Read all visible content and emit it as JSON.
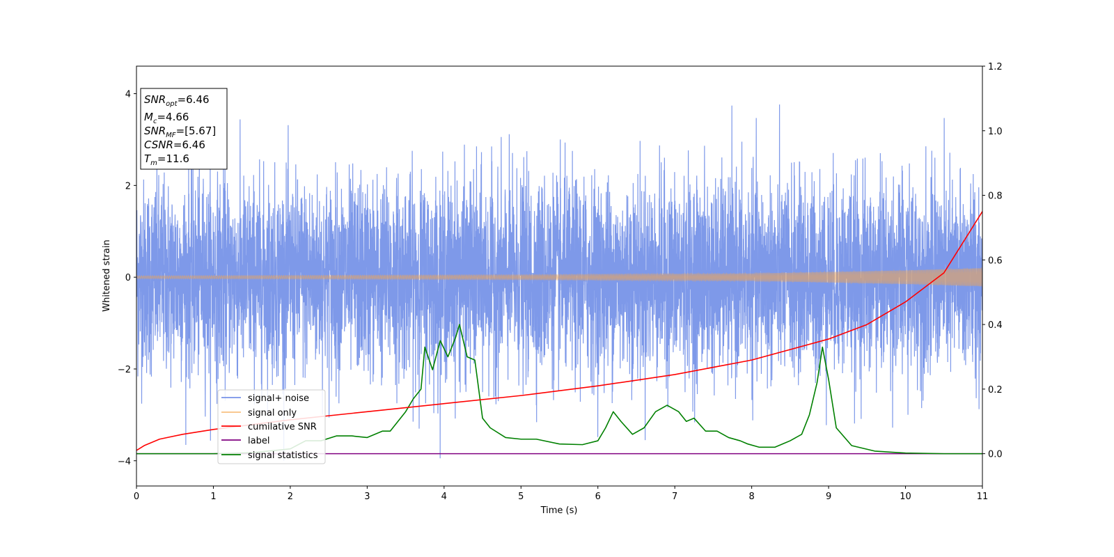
{
  "chart_data": {
    "type": "line",
    "xlabel": "Time (s)",
    "ylabel": "Whitened strain",
    "xlim": [
      0,
      11
    ],
    "ylim_left": [
      -4.55,
      4.6
    ],
    "ylim_right": [
      -0.1,
      1.2
    ],
    "xticks": [
      "0",
      "1",
      "2",
      "3",
      "4",
      "5",
      "6",
      "7",
      "8",
      "9",
      "10",
      "11"
    ],
    "yticks_left": [
      "−4",
      "−2",
      "0",
      "2",
      "4"
    ],
    "yticks_right": [
      "0.0",
      "0.2",
      "0.4",
      "0.6",
      "0.8",
      "1.0",
      "1.2"
    ],
    "grid": false,
    "legend_location": "lower-left",
    "stats_box": [
      {
        "sym": "SNR",
        "sub": "opt",
        "value": "=6.46"
      },
      {
        "sym": "M",
        "sub": "c",
        "value": "=4.66"
      },
      {
        "sym": "SNR",
        "sub": "MF",
        "value": "=[5.67]"
      },
      {
        "sym": "CSNR",
        "sub": "",
        "value": "=6.46"
      },
      {
        "sym": "T",
        "sub": "m",
        "value": "=11.6"
      }
    ],
    "series": [
      {
        "name": "signal+ noise",
        "axis": "left",
        "color": "#7793e8",
        "kind": "noise",
        "description_values": {
          "envelope_min": -4.0,
          "envelope_max": 4.2,
          "typical_range": [
            -2.0,
            2.3
          ]
        }
      },
      {
        "name": "signal only",
        "axis": "left",
        "color": "#f5a64c",
        "kind": "chirp",
        "amplitude_at": [
          [
            0,
            0.03
          ],
          [
            5,
            0.05
          ],
          [
            8,
            0.08
          ],
          [
            10,
            0.15
          ],
          [
            11,
            0.2
          ]
        ]
      },
      {
        "name": "cumilative SNR",
        "axis": "right",
        "color": "#ff0000",
        "x": [
          0.0,
          0.1,
          0.3,
          0.6,
          1.0,
          1.5,
          2.0,
          3.0,
          4.0,
          5.0,
          6.0,
          7.0,
          8.0,
          9.0,
          9.5,
          10.0,
          10.5,
          11.0
        ],
        "y": [
          0.01,
          0.025,
          0.045,
          0.06,
          0.075,
          0.09,
          0.105,
          0.13,
          0.155,
          0.18,
          0.21,
          0.245,
          0.29,
          0.355,
          0.4,
          0.47,
          0.56,
          0.75
        ]
      },
      {
        "name": "label",
        "axis": "right",
        "color": "#800080",
        "x": [
          0,
          11
        ],
        "y": [
          0.0,
          0.0
        ]
      },
      {
        "name": "signal statistics",
        "axis": "right",
        "color": "#008000",
        "x": [
          0.0,
          0.5,
          1.0,
          1.5,
          2.0,
          2.2,
          2.4,
          2.6,
          2.8,
          3.0,
          3.2,
          3.3,
          3.5,
          3.6,
          3.7,
          3.75,
          3.85,
          3.95,
          4.05,
          4.15,
          4.2,
          4.3,
          4.4,
          4.5,
          4.6,
          4.8,
          5.0,
          5.2,
          5.5,
          5.8,
          6.0,
          6.1,
          6.2,
          6.3,
          6.45,
          6.6,
          6.75,
          6.9,
          7.05,
          7.15,
          7.25,
          7.4,
          7.55,
          7.7,
          7.85,
          7.95,
          8.1,
          8.3,
          8.5,
          8.65,
          8.75,
          8.85,
          8.92,
          9.0,
          9.1,
          9.3,
          9.6,
          10.0,
          10.5,
          11.0
        ],
        "y": [
          0.0,
          0.0,
          0.0,
          0.003,
          0.015,
          0.04,
          0.04,
          0.055,
          0.055,
          0.05,
          0.07,
          0.07,
          0.13,
          0.17,
          0.2,
          0.33,
          0.26,
          0.35,
          0.3,
          0.36,
          0.4,
          0.3,
          0.29,
          0.11,
          0.08,
          0.05,
          0.045,
          0.045,
          0.03,
          0.028,
          0.04,
          0.08,
          0.13,
          0.1,
          0.06,
          0.08,
          0.13,
          0.15,
          0.13,
          0.1,
          0.11,
          0.07,
          0.07,
          0.05,
          0.04,
          0.03,
          0.02,
          0.02,
          0.04,
          0.06,
          0.12,
          0.22,
          0.33,
          0.23,
          0.08,
          0.025,
          0.008,
          0.002,
          0.0,
          0.0
        ]
      }
    ]
  }
}
